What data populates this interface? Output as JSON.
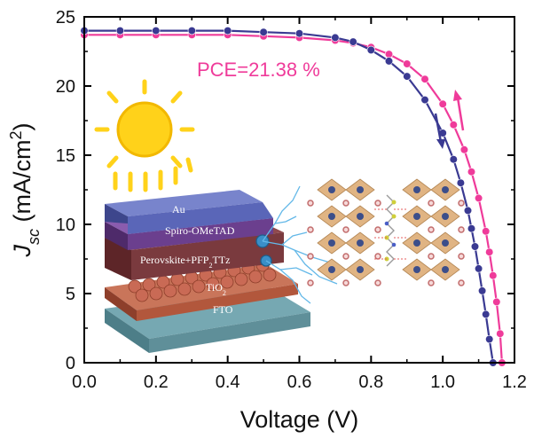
{
  "chart_data": {
    "type": "line",
    "xlabel": "Voltage (V)",
    "ylabel_main": "J",
    "ylabel_sub": "sc",
    "ylabel_unit_pre": "(mA/cm",
    "ylabel_unit_sup": "2",
    "ylabel_unit_post": ")",
    "xlim": [
      0.0,
      1.2
    ],
    "ylim": [
      0,
      25
    ],
    "xticks": [
      "0.0",
      "0.2",
      "0.4",
      "0.6",
      "0.8",
      "1.0",
      "1.2"
    ],
    "yticks": [
      "0",
      "5",
      "10",
      "15",
      "20",
      "25"
    ],
    "grid": false,
    "annotation": "PCE=21.38 %",
    "series": [
      {
        "color": "#ef3b9a",
        "direction": "reverse",
        "x": [
          0.0,
          0.1,
          0.2,
          0.3,
          0.4,
          0.5,
          0.6,
          0.7,
          0.75,
          0.8,
          0.85,
          0.9,
          0.95,
          1.0,
          1.03,
          1.06,
          1.08,
          1.1,
          1.12,
          1.13,
          1.14,
          1.15,
          1.16,
          1.165
        ],
        "y": [
          23.7,
          23.7,
          23.7,
          23.7,
          23.7,
          23.6,
          23.5,
          23.3,
          23.1,
          22.8,
          22.3,
          21.6,
          20.5,
          18.7,
          17.2,
          15.4,
          13.8,
          11.9,
          9.5,
          8.0,
          6.3,
          4.4,
          2.1,
          0.0
        ]
      },
      {
        "color": "#3a3a92",
        "direction": "forward",
        "x": [
          0.0,
          0.1,
          0.2,
          0.3,
          0.4,
          0.5,
          0.6,
          0.7,
          0.75,
          0.8,
          0.85,
          0.9,
          0.95,
          1.0,
          1.03,
          1.05,
          1.07,
          1.08,
          1.09,
          1.1,
          1.11,
          1.12,
          1.13,
          1.14
        ],
        "y": [
          24.0,
          24.0,
          24.0,
          24.0,
          24.0,
          23.9,
          23.8,
          23.5,
          23.2,
          22.6,
          21.8,
          20.7,
          19.0,
          16.6,
          14.7,
          13.0,
          11.0,
          9.7,
          8.4,
          6.8,
          5.2,
          3.5,
          1.7,
          0.0
        ]
      }
    ]
  },
  "inset": {
    "layers": [
      "Au",
      "Spiro-OMeTAD",
      "Perovskite+PFP",
      "TiO",
      "FTO"
    ],
    "perovskite_sub": "2",
    "perovskite_tail": "TTz",
    "tio_sub": "2"
  },
  "colors": {
    "reverse": "#ef3b9a",
    "forward": "#3a3a92",
    "sun": "#ffd21a",
    "au": "#5a66b8",
    "spiro": "#6b3f8e",
    "perovskite": "#7a3a3e",
    "tio2": "#b2573c",
    "fto": "#5f8f99"
  }
}
